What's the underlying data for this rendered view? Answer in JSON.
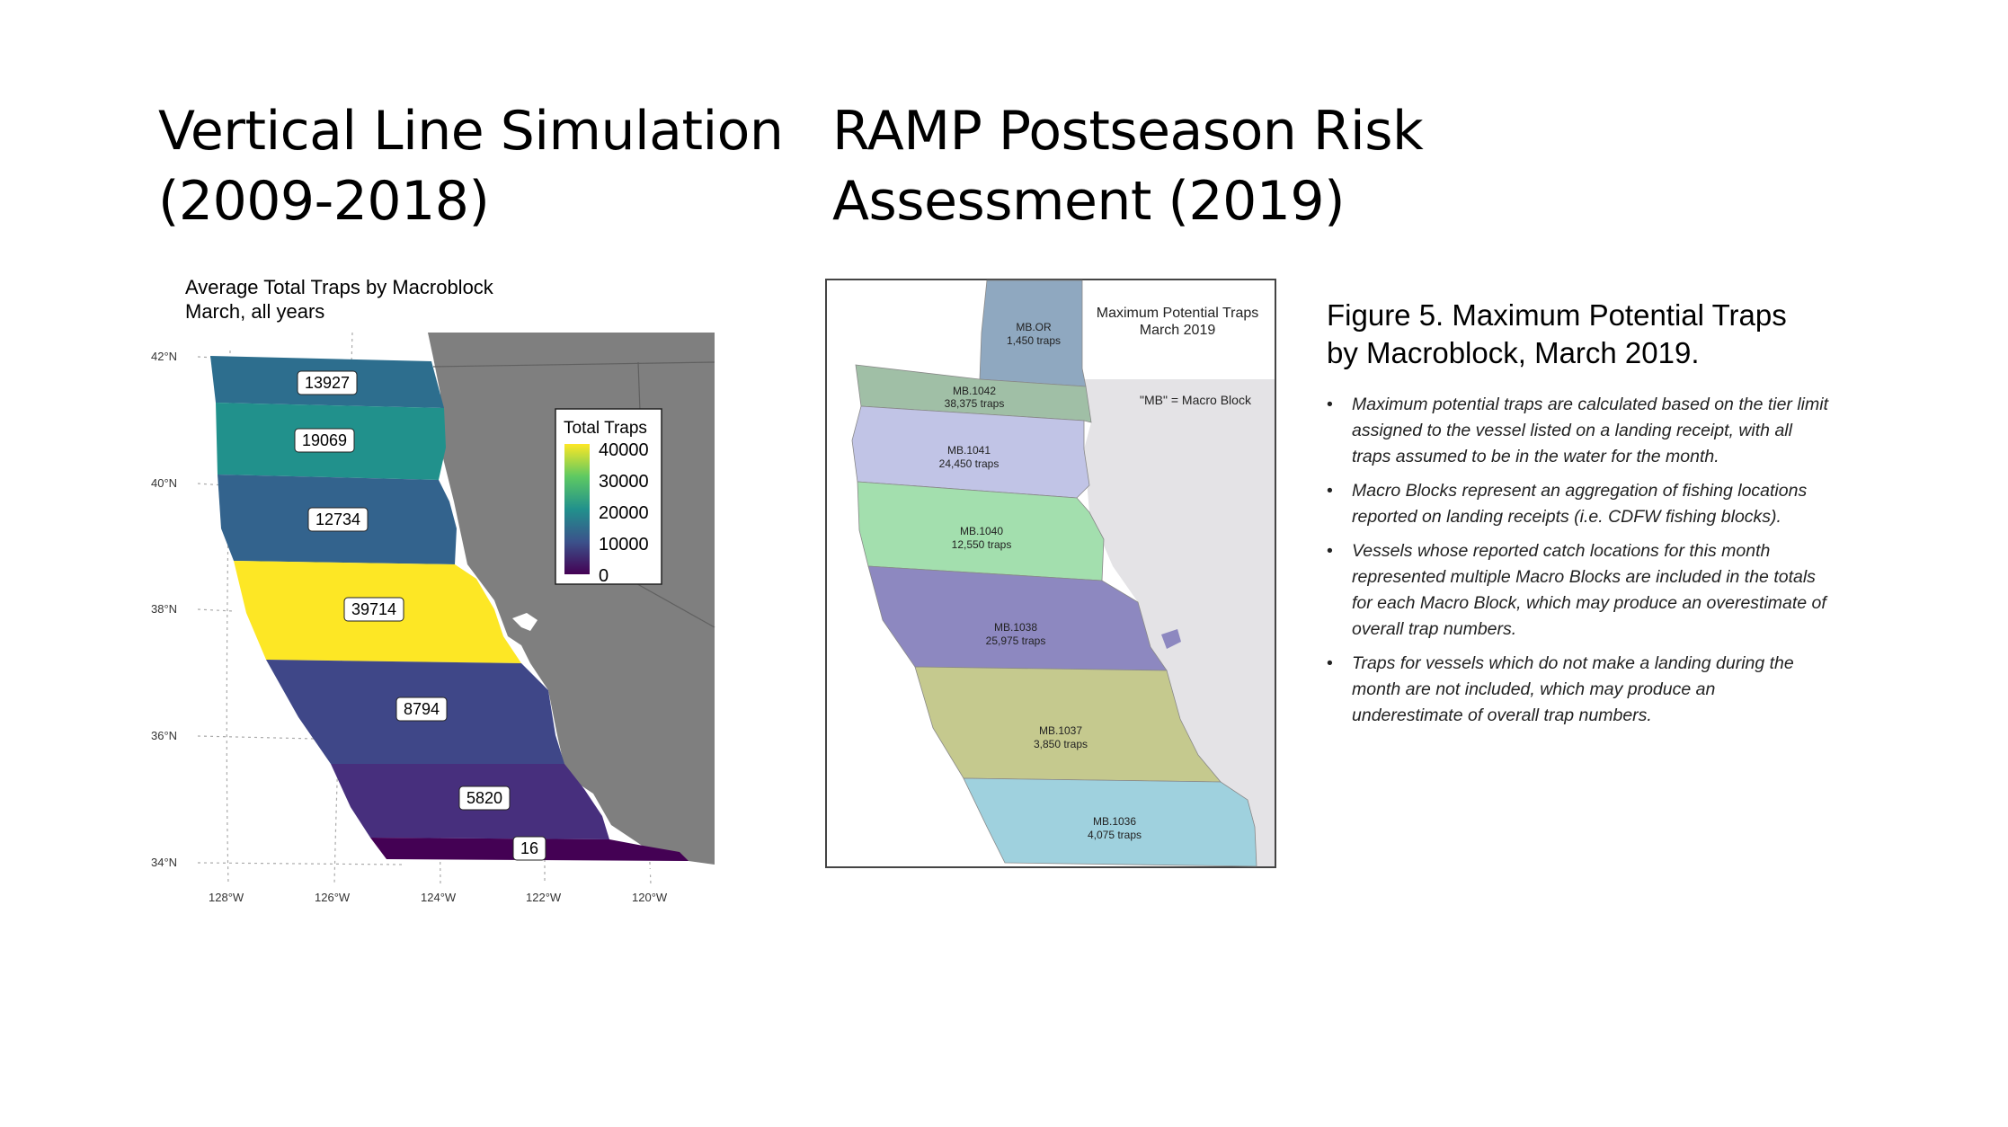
{
  "left": {
    "title_line1": "Vertical Line Simulation",
    "title_line2": "(2009-2018)",
    "map_title": "Average Total Traps by Macroblock",
    "map_subtitle": "March, all years",
    "legend_title": "Total Traps",
    "legend_ticks": [
      "40000",
      "30000",
      "20000",
      "10000",
      "0"
    ],
    "lat_labels": [
      "42°N",
      "40°N",
      "38°N",
      "36°N",
      "34°N"
    ],
    "lon_labels": [
      "128°W",
      "126°W",
      "124°W",
      "122°W",
      "120°W"
    ],
    "blocks": [
      {
        "value": "13927",
        "color": "#2d6e8e"
      },
      {
        "value": "19069",
        "color": "#21918c"
      },
      {
        "value": "12734",
        "color": "#33638d"
      },
      {
        "value": "39714",
        "color": "#fde725"
      },
      {
        "value": "8794",
        "color": "#3f4788"
      },
      {
        "value": "5820",
        "color": "#472f7d"
      },
      {
        "value": "16",
        "color": "#440154"
      }
    ]
  },
  "right": {
    "title_line1": "RAMP Postseason Risk",
    "title_line2": "Assessment (2019)",
    "map_title_line1": "Maximum Potential Traps",
    "map_title_line2": "March 2019",
    "mb_note": "\"MB\" = Macro Block",
    "blocks": [
      {
        "name": "MB.OR",
        "traps": "1,450 traps",
        "color": "#8fa8c0"
      },
      {
        "name": "MB.1042",
        "traps": "38,375 traps",
        "color": "#a0bfa6"
      },
      {
        "name": "MB.1041",
        "traps": "24,450 traps",
        "color": "#c1c4e6"
      },
      {
        "name": "MB.1040",
        "traps": "12,550 traps",
        "color": "#a3dfae"
      },
      {
        "name": "MB.1038",
        "traps": "25,975 traps",
        "color": "#8d88c0"
      },
      {
        "name": "MB.1037",
        "traps": "3,850 traps",
        "color": "#c5c98e"
      },
      {
        "name": "MB.1036",
        "traps": "4,075 traps",
        "color": "#9fd1de"
      }
    ],
    "caption_line1": "Figure 5. Maximum Potential Traps",
    "caption_line2": "by Macroblock, March 2019.",
    "bullets": [
      "Maximum potential traps are calculated based on the tier limit assigned to the vessel listed on a landing receipt, with all traps assumed to be in the water for the month.",
      "Macro Blocks represent an aggregation of fishing locations reported on landing receipts (i.e. CDFW fishing blocks).",
      "Vessels whose reported catch locations for this month represented multiple Macro Blocks are included in the totals for each Macro Block, which may produce an overestimate of overall trap numbers.",
      "Traps for vessels which do not make a landing during the month are not included, which may produce an underestimate of overall trap numbers."
    ]
  },
  "colors": {
    "land_dark": "#7f7f7f",
    "land_light": "#e4e3e6",
    "legend_gradient": [
      "#fde725",
      "#5ec962",
      "#21918c",
      "#3b528b",
      "#440154"
    ]
  }
}
